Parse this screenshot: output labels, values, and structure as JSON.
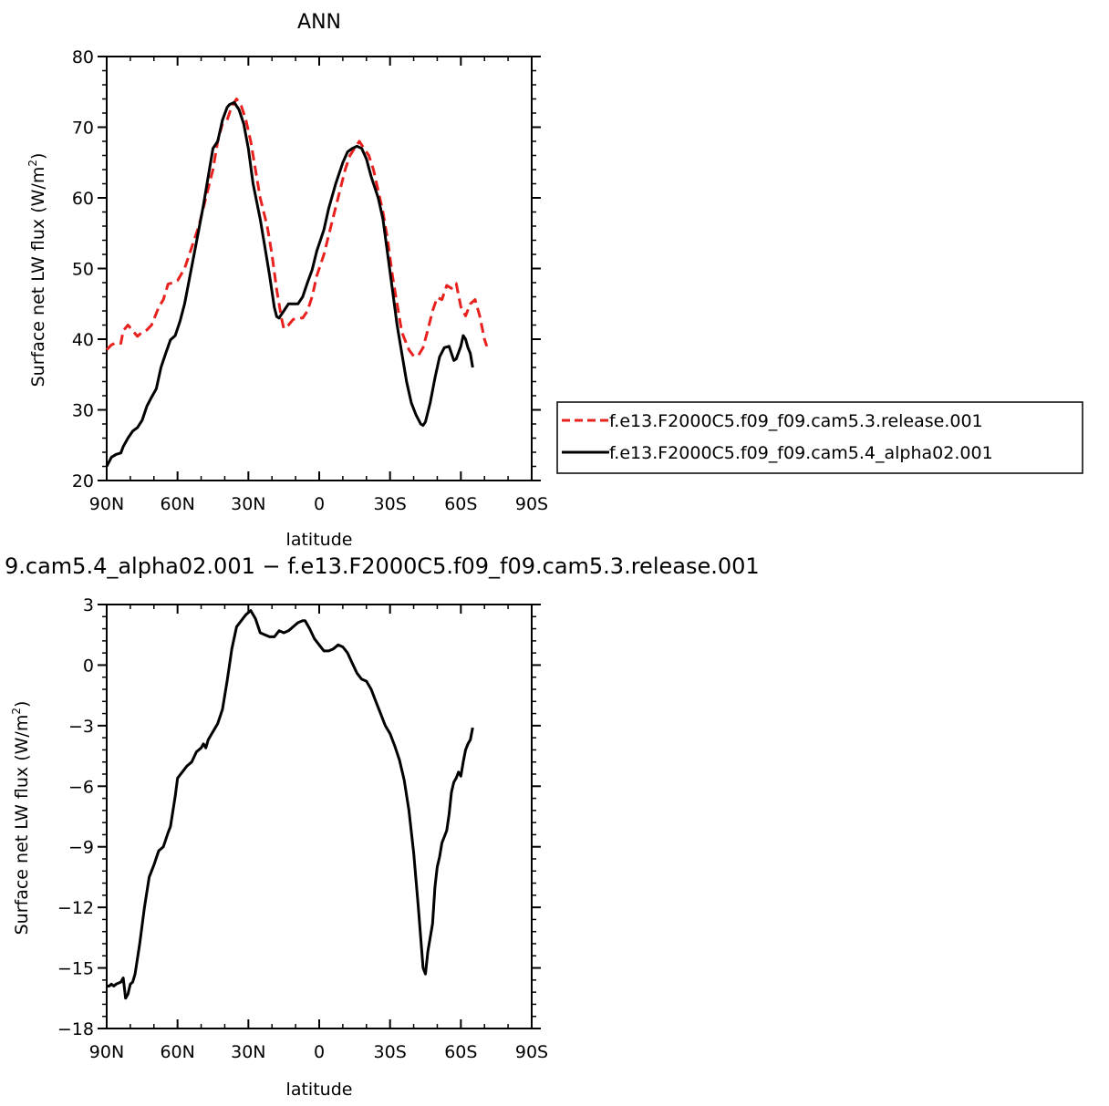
{
  "chart_data": [
    {
      "type": "line",
      "title": "ANN",
      "xlabel": "latitude",
      "ylabel_main": "Surface net LW flux (W/m",
      "ylabel_sup": "2",
      "ylabel_close": ")",
      "xlim": [
        90,
        -90
      ],
      "ylim": [
        20,
        80
      ],
      "x_ticks": [
        90,
        60,
        30,
        0,
        -30,
        -60,
        -90
      ],
      "x_tick_labels": [
        "90N",
        "60N",
        "30N",
        "0",
        "30S",
        "60S",
        "90S"
      ],
      "y_ticks": [
        20,
        30,
        40,
        50,
        60,
        70,
        80
      ],
      "y_tick_labels": [
        "20",
        "30",
        "40",
        "50",
        "60",
        "70",
        "80"
      ],
      "grid": false,
      "legend_position": "right",
      "series": [
        {
          "name": "f.e13.F2000C5.f09_f09.cam5.3.release.001",
          "color": "#e8211e",
          "dash": "dashed",
          "points": [
            [
              90,
              38.5
            ],
            [
              88,
              39.2
            ],
            [
              86,
              39.5
            ],
            [
              84,
              39.4
            ],
            [
              83,
              41.2
            ],
            [
              81,
              42
            ],
            [
              79,
              41.2
            ],
            [
              77,
              40.4
            ],
            [
              75,
              41
            ],
            [
              73,
              41.3
            ],
            [
              71,
              42
            ],
            [
              68,
              44.5
            ],
            [
              66,
              45.6
            ],
            [
              64,
              47.8
            ],
            [
              62,
              48
            ],
            [
              60,
              48.3
            ],
            [
              57,
              50
            ],
            [
              54,
              53
            ],
            [
              51,
              56
            ],
            [
              48,
              60
            ],
            [
              45,
              64
            ],
            [
              43,
              68
            ],
            [
              41,
              70.5
            ],
            [
              39,
              71
            ],
            [
              37,
              73
            ],
            [
              35,
              74
            ],
            [
              33,
              73
            ],
            [
              31,
              71
            ],
            [
              29,
              68
            ],
            [
              27,
              64
            ],
            [
              25,
              60
            ],
            [
              22,
              56
            ],
            [
              20,
              52
            ],
            [
              18,
              47
            ],
            [
              16,
              43
            ],
            [
              15,
              41.5
            ],
            [
              13,
              42
            ],
            [
              11,
              42.8
            ],
            [
              9,
              43
            ],
            [
              7,
              43
            ],
            [
              5,
              44
            ],
            [
              3,
              46
            ],
            [
              1,
              49
            ],
            [
              -2,
              52
            ],
            [
              -5,
              56
            ],
            [
              -8,
              60
            ],
            [
              -11,
              64
            ],
            [
              -13,
              66
            ],
            [
              -15,
              67
            ],
            [
              -17,
              68
            ],
            [
              -19,
              67
            ],
            [
              -21,
              66
            ],
            [
              -23,
              64
            ],
            [
              -25,
              61
            ],
            [
              -27,
              58
            ],
            [
              -29,
              54
            ],
            [
              -31,
              49
            ],
            [
              -33,
              45
            ],
            [
              -35,
              41
            ],
            [
              -38,
              38.5
            ],
            [
              -40,
              37.6
            ],
            [
              -42,
              37.7
            ],
            [
              -44,
              38.8
            ],
            [
              -46,
              41.3
            ],
            [
              -48,
              44
            ],
            [
              -50,
              45.9
            ],
            [
              -52,
              45.6
            ],
            [
              -54,
              47.6
            ],
            [
              -56,
              47.2
            ],
            [
              -58,
              47.9
            ],
            [
              -60,
              44.6
            ],
            [
              -62,
              43.3
            ],
            [
              -64,
              45
            ],
            [
              -66,
              45.6
            ],
            [
              -68,
              43.3
            ],
            [
              -70,
              40
            ],
            [
              -71,
              39
            ]
          ]
        },
        {
          "name": "f.e13.F2000C5.f09_f09.cam5.4_alpha02.001",
          "color": "#000000",
          "dash": "solid",
          "points": [
            [
              90,
              22
            ],
            [
              88,
              23.3
            ],
            [
              86,
              23.7
            ],
            [
              84,
              23.9
            ],
            [
              83,
              24.8
            ],
            [
              81,
              26
            ],
            [
              79,
              27
            ],
            [
              77,
              27.5
            ],
            [
              75,
              28.5
            ],
            [
              73,
              30.5
            ],
            [
              71,
              31.8
            ],
            [
              69,
              33
            ],
            [
              67,
              36
            ],
            [
              65,
              38
            ],
            [
              63,
              39.9
            ],
            [
              61,
              40.5
            ],
            [
              59,
              42.5
            ],
            [
              57,
              45
            ],
            [
              55,
              48.5
            ],
            [
              53,
              52
            ],
            [
              51,
              55.5
            ],
            [
              49,
              59
            ],
            [
              47,
              63
            ],
            [
              45,
              67
            ],
            [
              43,
              68
            ],
            [
              41,
              71
            ],
            [
              39,
              72.8
            ],
            [
              38,
              73.2
            ],
            [
              36,
              73.5
            ],
            [
              34,
              72.5
            ],
            [
              32,
              70.5
            ],
            [
              30,
              67
            ],
            [
              28,
              62
            ],
            [
              25,
              57
            ],
            [
              23,
              53
            ],
            [
              21,
              49
            ],
            [
              19,
              44.5
            ],
            [
              18,
              43.2
            ],
            [
              17,
              43
            ],
            [
              15,
              44
            ],
            [
              13,
              45
            ],
            [
              11,
              45
            ],
            [
              9,
              45
            ],
            [
              7,
              46
            ],
            [
              5,
              48
            ],
            [
              3,
              49.8
            ],
            [
              1,
              52.5
            ],
            [
              -2,
              55.5
            ],
            [
              -4,
              58.5
            ],
            [
              -7,
              62
            ],
            [
              -10,
              65
            ],
            [
              -12,
              66.5
            ],
            [
              -14,
              67
            ],
            [
              -16,
              67.3
            ],
            [
              -18,
              67
            ],
            [
              -20,
              65.5
            ],
            [
              -22,
              63
            ],
            [
              -25,
              60
            ],
            [
              -27,
              57
            ],
            [
              -29,
              52
            ],
            [
              -31,
              47
            ],
            [
              -33,
              42
            ],
            [
              -35,
              38
            ],
            [
              -37,
              34
            ],
            [
              -39,
              31
            ],
            [
              -41,
              29.3
            ],
            [
              -43,
              28
            ],
            [
              -44,
              27.8
            ],
            [
              -45,
              28.3
            ],
            [
              -47,
              31
            ],
            [
              -49,
              34.5
            ],
            [
              -51,
              37.5
            ],
            [
              -53,
              38.8
            ],
            [
              -55,
              39
            ],
            [
              -57,
              37
            ],
            [
              -58,
              37.2
            ],
            [
              -60,
              39
            ],
            [
              -61,
              40.5
            ],
            [
              -62,
              40
            ],
            [
              -63,
              38.8
            ],
            [
              -64,
              38
            ],
            [
              -65,
              36
            ]
          ]
        }
      ]
    },
    {
      "type": "line",
      "title": "9.cam5.4_alpha02.001 − f.e13.F2000C5.f09_f09.cam5.3.release.001",
      "xlabel": "latitude",
      "ylabel_main": "Surface net LW flux (W/m",
      "ylabel_sup": "2",
      "ylabel_close": ")",
      "xlim": [
        90,
        -90
      ],
      "ylim": [
        -18,
        3
      ],
      "x_ticks": [
        90,
        60,
        30,
        0,
        -30,
        -60,
        -90
      ],
      "x_tick_labels": [
        "90N",
        "60N",
        "30N",
        "0",
        "30S",
        "60S",
        "90S"
      ],
      "y_ticks": [
        3,
        0,
        -3,
        -6,
        -9,
        -12,
        -15,
        -18
      ],
      "y_tick_labels": [
        "3",
        "0",
        "−3",
        "−6",
        "−9",
        "−12",
        "−15",
        "−18"
      ],
      "grid": false,
      "series": [
        {
          "name": "",
          "color": "#000000",
          "dash": "solid",
          "points": [
            [
              90,
              -15.9
            ],
            [
              89,
              -15.9
            ],
            [
              88,
              -15.8
            ],
            [
              87,
              -15.9
            ],
            [
              86,
              -15.8
            ],
            [
              84,
              -15.7
            ],
            [
              83,
              -15.5
            ],
            [
              82,
              -16.5
            ],
            [
              81,
              -16.3
            ],
            [
              80,
              -15.8
            ],
            [
              79,
              -15.7
            ],
            [
              78,
              -15.3
            ],
            [
              76,
              -13.8
            ],
            [
              74,
              -12
            ],
            [
              72,
              -10.5
            ],
            [
              70,
              -9.9
            ],
            [
              68,
              -9.2
            ],
            [
              66,
              -9
            ],
            [
              64,
              -8.3
            ],
            [
              63,
              -8
            ],
            [
              61,
              -6.5
            ],
            [
              60,
              -5.6
            ],
            [
              58,
              -5.3
            ],
            [
              56,
              -5
            ],
            [
              54,
              -4.8
            ],
            [
              52,
              -4.3
            ],
            [
              50,
              -4.1
            ],
            [
              49,
              -3.9
            ],
            [
              48,
              -4.1
            ],
            [
              47,
              -3.7
            ],
            [
              45,
              -3.3
            ],
            [
              43,
              -2.9
            ],
            [
              41,
              -2.2
            ],
            [
              39,
              -0.8
            ],
            [
              37,
              0.8
            ],
            [
              35,
              1.9
            ],
            [
              33,
              2.2
            ],
            [
              31,
              2.5
            ],
            [
              29,
              2.7
            ],
            [
              27,
              2.3
            ],
            [
              25,
              1.6
            ],
            [
              23,
              1.5
            ],
            [
              21,
              1.4
            ],
            [
              19,
              1.4
            ],
            [
              17,
              1.7
            ],
            [
              15,
              1.6
            ],
            [
              13,
              1.7
            ],
            [
              11,
              1.9
            ],
            [
              9,
              2.1
            ],
            [
              7,
              2.2
            ],
            [
              6,
              2.2
            ],
            [
              4,
              1.8
            ],
            [
              2,
              1.3
            ],
            [
              0,
              1
            ],
            [
              -2,
              0.7
            ],
            [
              -4,
              0.7
            ],
            [
              -6,
              0.8
            ],
            [
              -8,
              1
            ],
            [
              -10,
              0.9
            ],
            [
              -12,
              0.6
            ],
            [
              -14,
              0.1
            ],
            [
              -16,
              -0.4
            ],
            [
              -18,
              -0.7
            ],
            [
              -20,
              -0.8
            ],
            [
              -22,
              -1.2
            ],
            [
              -24,
              -1.8
            ],
            [
              -26,
              -2.4
            ],
            [
              -28,
              -3
            ],
            [
              -30,
              -3.4
            ],
            [
              -32,
              -4
            ],
            [
              -34,
              -4.7
            ],
            [
              -36,
              -5.7
            ],
            [
              -38,
              -7.2
            ],
            [
              -40,
              -9.3
            ],
            [
              -42,
              -12
            ],
            [
              -43,
              -13.5
            ],
            [
              -44,
              -15
            ],
            [
              -45,
              -15.3
            ],
            [
              -46,
              -14.2
            ],
            [
              -48,
              -12.8
            ],
            [
              -49,
              -11
            ],
            [
              -50,
              -10
            ],
            [
              -51,
              -9.5
            ],
            [
              -52,
              -8.8
            ],
            [
              -54,
              -8.2
            ],
            [
              -55,
              -7.4
            ],
            [
              -56,
              -6.3
            ],
            [
              -57,
              -5.8
            ],
            [
              -58,
              -5.6
            ],
            [
              -59,
              -5.3
            ],
            [
              -60,
              -5.5
            ],
            [
              -61,
              -4.8
            ],
            [
              -62,
              -4.2
            ],
            [
              -63,
              -3.9
            ],
            [
              -64,
              -3.7
            ],
            [
              -65,
              -3.1
            ]
          ]
        }
      ]
    }
  ]
}
